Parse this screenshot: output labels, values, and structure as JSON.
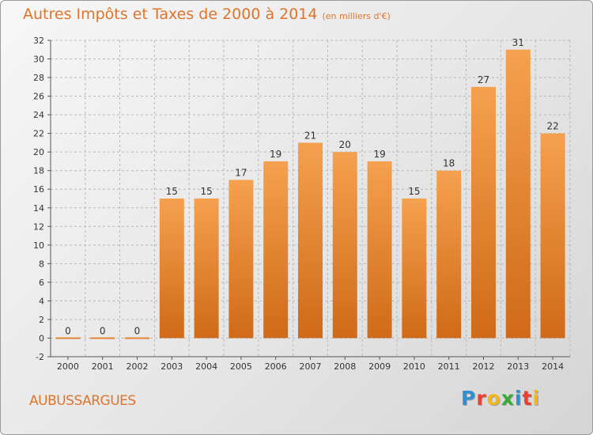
{
  "header": {
    "title": "Autres Impôts et Taxes de 2000 à 2014",
    "subtitle": "(en milliers d'€)"
  },
  "footer": {
    "commune": "AUBUSSARGUES",
    "logo_letters": [
      "P",
      "r",
      "o",
      "x",
      "i",
      "t",
      "i"
    ]
  },
  "colors": {
    "bar_light": "#f5a14f",
    "bar_dark": "#cf6a18",
    "title": "#e0742b",
    "grid": "#b8b8b8",
    "logo": [
      "#2f8fd0",
      "#e8402f",
      "#f2b51c",
      "#3aa935",
      "#2f8fd0",
      "#e8402f",
      "#f2b51c"
    ]
  },
  "chart_data": {
    "type": "bar",
    "title": "Autres Impôts et Taxes de 2000 à 2014",
    "subtitle": "(en milliers d'€)",
    "categories": [
      "2000",
      "2001",
      "2002",
      "2003",
      "2004",
      "2005",
      "2006",
      "2007",
      "2008",
      "2009",
      "2010",
      "2011",
      "2012",
      "2013",
      "2014"
    ],
    "values": [
      0,
      0,
      0,
      15,
      15,
      17,
      19,
      21,
      20,
      19,
      15,
      18,
      27,
      31,
      22
    ],
    "value_labels": [
      "0",
      "0",
      "0",
      "15",
      "15",
      "17",
      "19",
      "21",
      "20",
      "19",
      "15",
      "18",
      "27",
      "31",
      "22"
    ],
    "yticks": [
      "-2",
      "0",
      "2",
      "4",
      "6",
      "8",
      "10",
      "12",
      "14",
      "16",
      "18",
      "20",
      "22",
      "24",
      "26",
      "28",
      "30",
      "32"
    ],
    "ylim": [
      -2,
      32
    ],
    "grid": true,
    "xlabel": "",
    "ylabel": ""
  }
}
